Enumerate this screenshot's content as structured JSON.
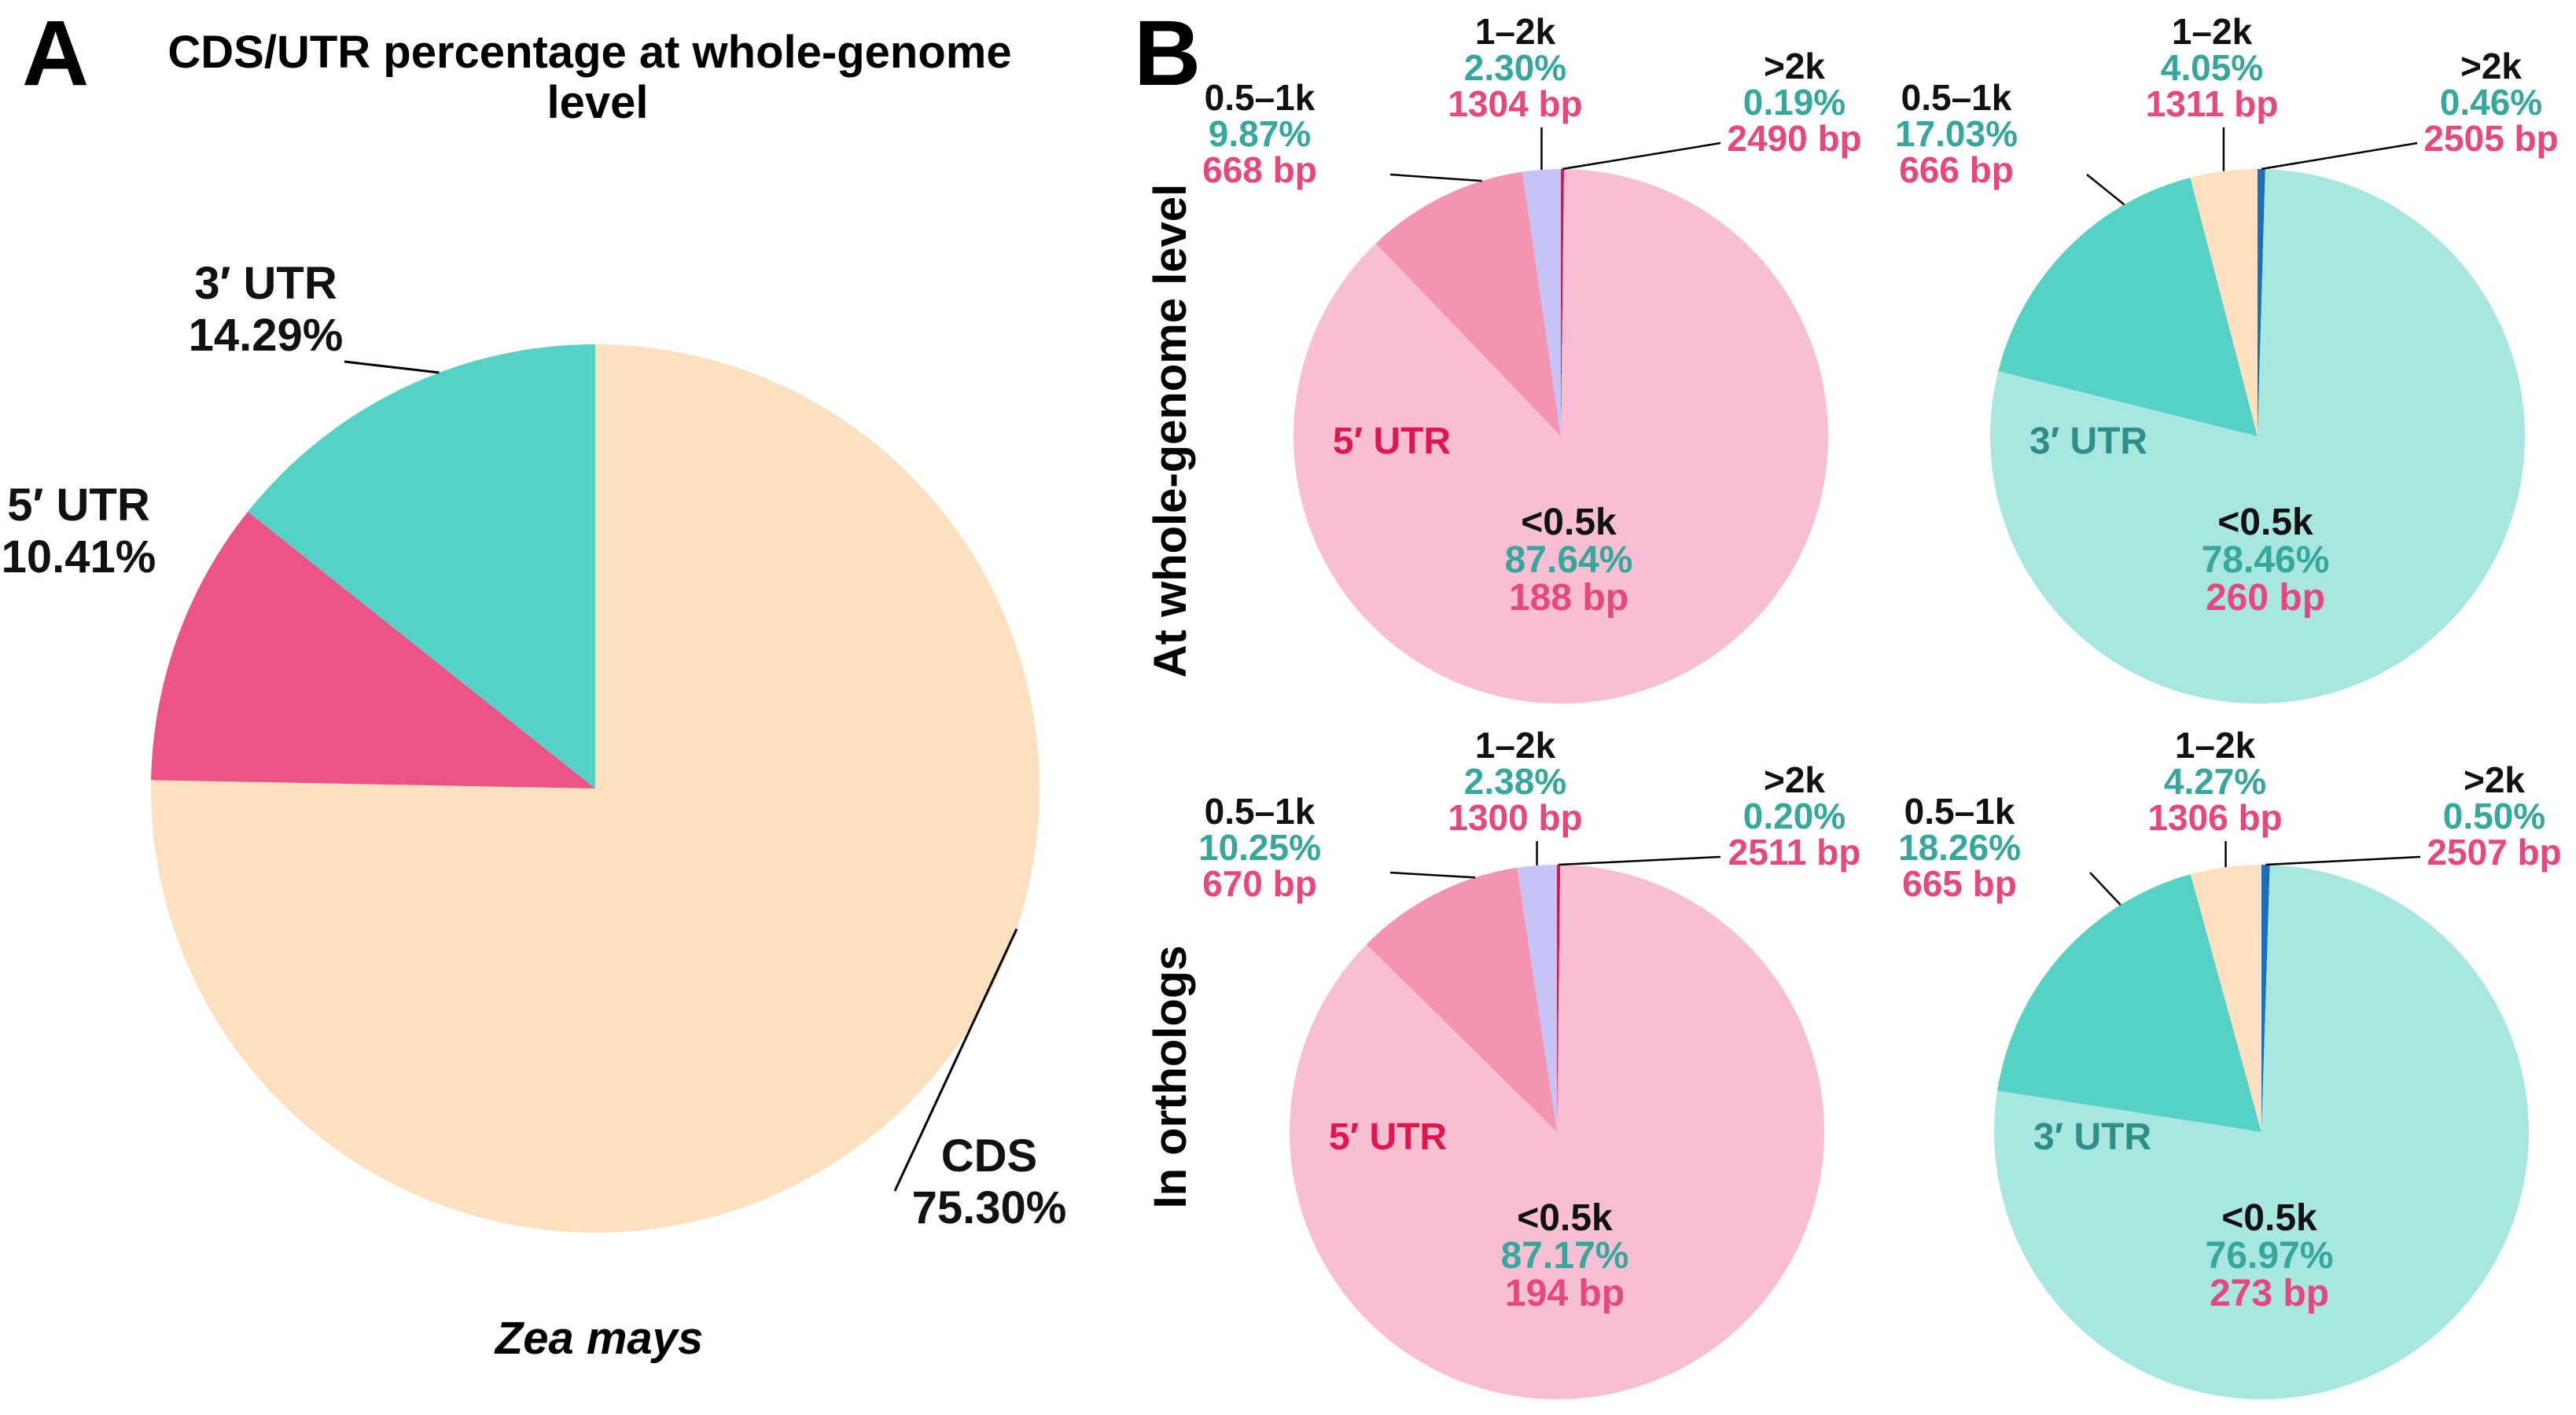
{
  "panel_a": {
    "letter": "A",
    "title_line1": "CDS/UTR percentage at whole-genome",
    "title_line2": "level",
    "species": "Zea mays"
  },
  "panel_b": {
    "letter": "B",
    "row_labels": [
      "At whole-genome level",
      "In orthologs"
    ]
  },
  "colors": {
    "cds": "#fde0c0",
    "utr5": "#ec5486",
    "utr3": "#56d1c6",
    "text_dark": "#111111",
    "text_teal": "#35a79c",
    "text_pink": "#e6477c",
    "text_crimson": "#e0174f",
    "text_darkteal": "#2f8f88",
    "leader": "#000000"
  },
  "chart_data": [
    {
      "id": "A",
      "type": "pie",
      "title": "CDS/UTR percentage at whole-genome level",
      "subtitle": "Zea mays",
      "slices": [
        {
          "name": "CDS",
          "value": 75.3,
          "pct_label": "75.30%",
          "color": "#fde0c0"
        },
        {
          "name": "5′ UTR",
          "value": 10.41,
          "pct_label": "10.41%",
          "color": "#ec5486"
        },
        {
          "name": "3′ UTR",
          "value": 14.29,
          "pct_label": "14.29%",
          "color": "#56d1c6"
        }
      ]
    },
    {
      "id": "B1",
      "type": "pie",
      "region": "5′ UTR",
      "row": "At whole-genome level",
      "slices": [
        {
          "name": "<0.5k",
          "value": 87.64,
          "pct_label": "87.64%",
          "bp": "188 bp",
          "color": "#f8bfd3"
        },
        {
          "name": "0.5–1k",
          "value": 9.87,
          "pct_label": "9.87%",
          "bp": "668 bp",
          "color": "#f394b1"
        },
        {
          "name": "1–2k",
          "value": 2.3,
          "pct_label": "2.30%",
          "bp": "1304 bp",
          "color": "#c6c4f6"
        },
        {
          "name": ">2k",
          "value": 0.19,
          "pct_label": "0.19%",
          "bp": "2490 bp",
          "color": "#d6184e"
        }
      ]
    },
    {
      "id": "B2",
      "type": "pie",
      "region": "3′ UTR",
      "row": "At whole-genome level",
      "slices": [
        {
          "name": "<0.5k",
          "value": 78.46,
          "pct_label": "78.46%",
          "bp": "260 bp",
          "color": "#a8e6e0"
        },
        {
          "name": "0.5–1k",
          "value": 17.03,
          "pct_label": "17.03%",
          "bp": "666 bp",
          "color": "#56d1c6"
        },
        {
          "name": "1–2k",
          "value": 4.05,
          "pct_label": "4.05%",
          "bp": "1311 bp",
          "color": "#fde0c0"
        },
        {
          "name": ">2k",
          "value": 0.46,
          "pct_label": "0.46%",
          "bp": "2505 bp",
          "color": "#1a6fb8"
        }
      ]
    },
    {
      "id": "B3",
      "type": "pie",
      "region": "5′ UTR",
      "row": "In orthologs",
      "slices": [
        {
          "name": "<0.5k",
          "value": 87.17,
          "pct_label": "87.17%",
          "bp": "194 bp",
          "color": "#f8bfd3"
        },
        {
          "name": "0.5–1k",
          "value": 10.25,
          "pct_label": "10.25%",
          "bp": "670 bp",
          "color": "#f394b1"
        },
        {
          "name": "1–2k",
          "value": 2.38,
          "pct_label": "2.38%",
          "bp": "1300 bp",
          "color": "#c6c4f6"
        },
        {
          "name": ">2k",
          "value": 0.2,
          "pct_label": "0.20%",
          "bp": "2511 bp",
          "color": "#d6184e"
        }
      ]
    },
    {
      "id": "B4",
      "type": "pie",
      "region": "3′ UTR",
      "row": "In orthologs",
      "slices": [
        {
          "name": "<0.5k",
          "value": 76.97,
          "pct_label": "76.97%",
          "bp": "273 bp",
          "color": "#a8e6e0"
        },
        {
          "name": "0.5–1k",
          "value": 18.26,
          "pct_label": "18.26%",
          "bp": "665 bp",
          "color": "#56d1c6"
        },
        {
          "name": "1–2k",
          "value": 4.27,
          "pct_label": "4.27%",
          "bp": "1306 bp",
          "color": "#fde0c0"
        },
        {
          "name": ">2k",
          "value": 0.5,
          "pct_label": "0.50%",
          "bp": "2507 bp",
          "color": "#1a6fb8"
        }
      ]
    }
  ]
}
